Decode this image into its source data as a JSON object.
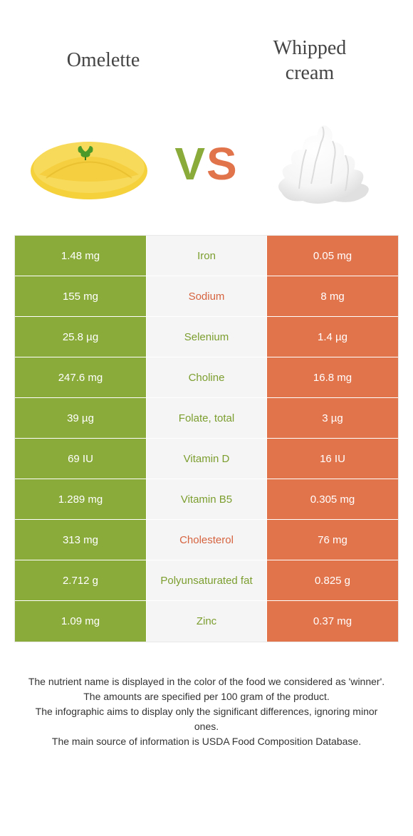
{
  "titles": {
    "left": "Omelette",
    "right_line1": "Whipped",
    "right_line2": "cream"
  },
  "vs": {
    "v": "V",
    "s": "S"
  },
  "colors": {
    "green": "#8aab3a",
    "orange": "#e2744c",
    "mid_bg": "#f5f5f5",
    "label_green": "#7c9e2f",
    "label_orange": "#d6633f"
  },
  "rows": [
    {
      "left": "1.48 mg",
      "name": "Iron",
      "right": "0.05 mg",
      "winner": "left"
    },
    {
      "left": "155 mg",
      "name": "Sodium",
      "right": "8 mg",
      "winner": "right"
    },
    {
      "left": "25.8 µg",
      "name": "Selenium",
      "right": "1.4 µg",
      "winner": "left"
    },
    {
      "left": "247.6 mg",
      "name": "Choline",
      "right": "16.8 mg",
      "winner": "left"
    },
    {
      "left": "39 µg",
      "name": "Folate, total",
      "right": "3 µg",
      "winner": "left"
    },
    {
      "left": "69 IU",
      "name": "Vitamin D",
      "right": "16 IU",
      "winner": "left"
    },
    {
      "left": "1.289 mg",
      "name": "Vitamin B5",
      "right": "0.305 mg",
      "winner": "left"
    },
    {
      "left": "313 mg",
      "name": "Cholesterol",
      "right": "76 mg",
      "winner": "right"
    },
    {
      "left": "2.712 g",
      "name": "Polyunsaturated fat",
      "right": "0.825 g",
      "winner": "left"
    },
    {
      "left": "1.09 mg",
      "name": "Zinc",
      "right": "0.37 mg",
      "winner": "left"
    }
  ],
  "footer": {
    "l1": "The nutrient name is displayed in the color of the food we considered as 'winner'.",
    "l2": "The amounts are specified per 100 gram of the product.",
    "l3": "The infographic aims to display only the significant differences, ignoring minor ones.",
    "l4": "The main source of information is USDA Food Composition Database."
  }
}
